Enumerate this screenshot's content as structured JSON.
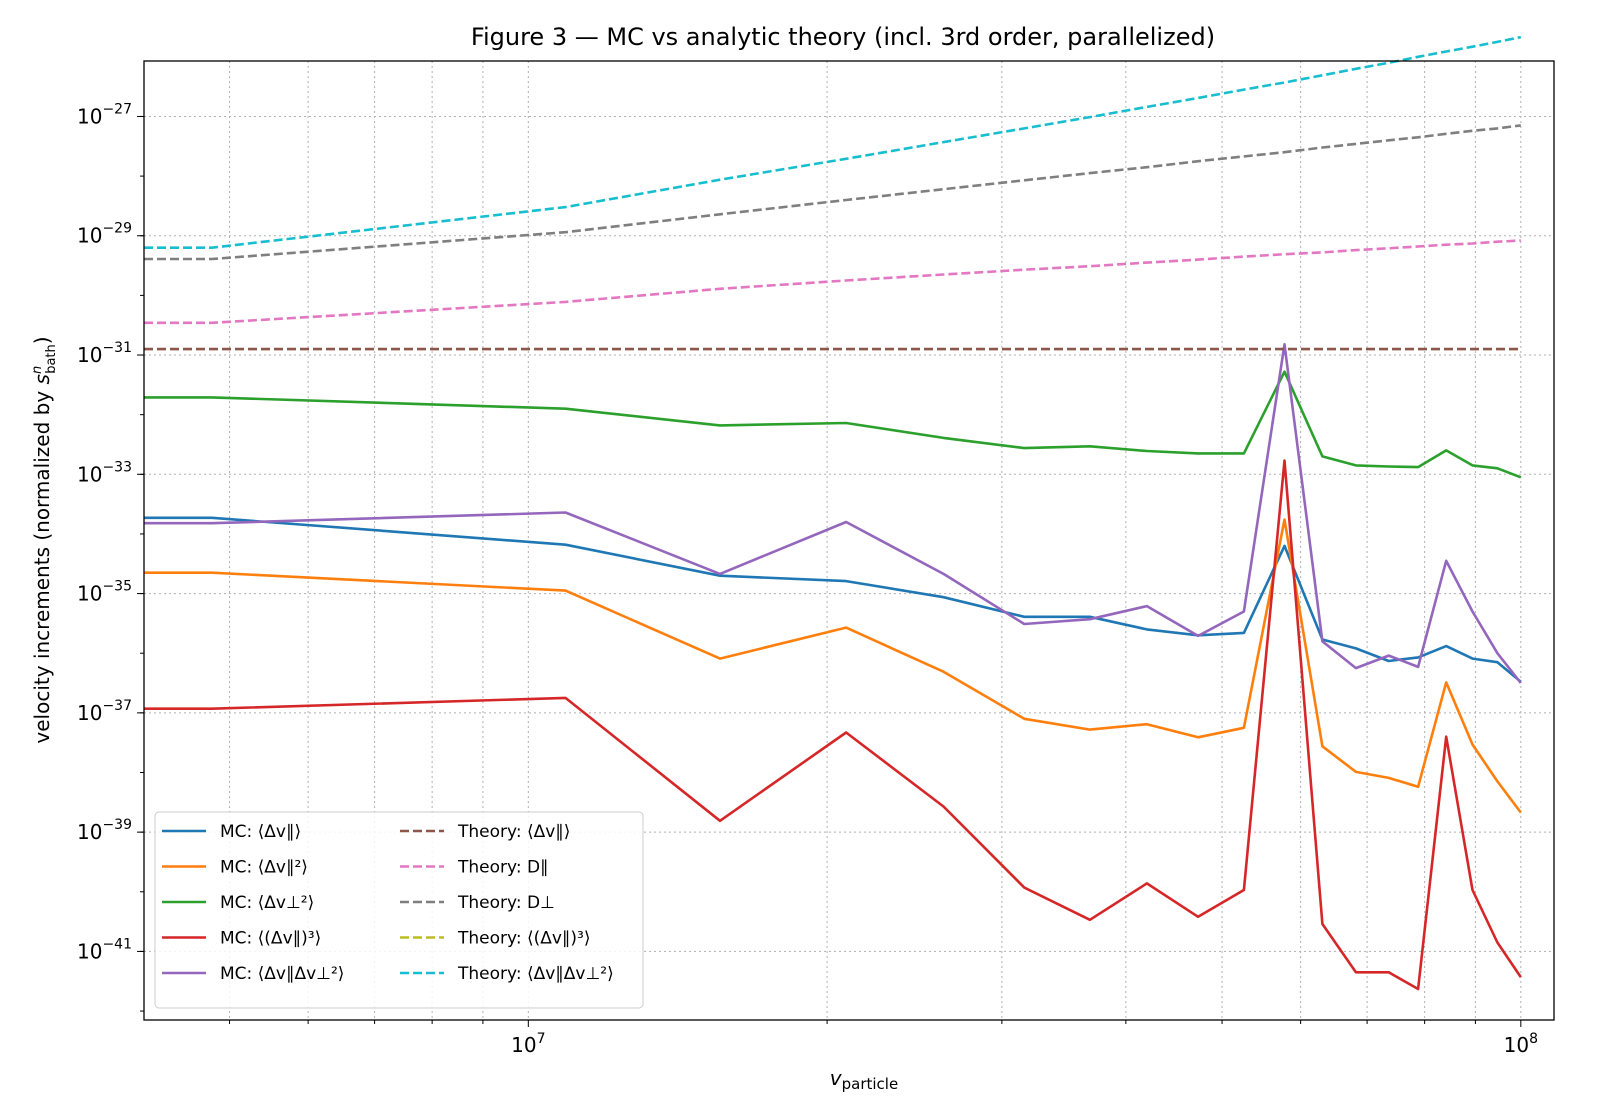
{
  "chart_data": {
    "type": "line",
    "title": "Figure 3 — MC vs analytic theory (incl. 3rd order, parallelized)",
    "xlabel": "v_particle",
    "ylabel": "velocity increments (normalized by s_bath^n)",
    "x_scale": "log",
    "y_scale": "log",
    "xlim": [
      4100000,
      108000000
    ],
    "ylim_exp": [
      -42.15,
      -26.07
    ],
    "x_ticks": [
      {
        "value": 10000000,
        "mantissa": "10",
        "exp": "7"
      },
      {
        "value": 100000000,
        "mantissa": "10",
        "exp": "8"
      }
    ],
    "y_ticks": [
      {
        "exp": -41,
        "label": "−41"
      },
      {
        "exp": -39,
        "label": "−39"
      },
      {
        "exp": -37,
        "label": "−37"
      },
      {
        "exp": -35,
        "label": "−35"
      },
      {
        "exp": -33,
        "label": "−33"
      },
      {
        "exp": -31,
        "label": "−31"
      },
      {
        "exp": -29,
        "label": "−29"
      },
      {
        "exp": -27,
        "label": "−27"
      }
    ],
    "grid": true,
    "legend_position": "lower-left",
    "x": [
      4100000,
      4800000,
      10900000,
      15600000,
      20900000,
      26200000,
      31600000,
      36800000,
      42000000,
      47300000,
      52600000,
      57800000,
      63100000,
      68200000,
      73600000,
      78800000,
      84100000,
      89400000,
      94700000,
      100000000
    ],
    "series": [
      {
        "name": "MC: ⟨Δv∥⟩",
        "color": "#1f77b4",
        "style": "solid",
        "log10_values": [
          -33.73,
          -33.73,
          -34.18,
          -34.7,
          -34.79,
          -35.06,
          -35.39,
          -35.39,
          -35.6,
          -35.7,
          -35.66,
          -34.2,
          -35.77,
          -35.92,
          -36.13,
          -36.07,
          -35.88,
          -36.09,
          -36.15,
          -36.48
        ]
      },
      {
        "name": "MC: ⟨Δv∥²⟩",
        "color": "#ff7f0e",
        "style": "solid",
        "log10_values": [
          -34.65,
          -34.65,
          -34.95,
          -36.09,
          -35.57,
          -36.31,
          -37.1,
          -37.28,
          -37.19,
          -37.41,
          -37.25,
          -33.76,
          -37.56,
          -37.99,
          -38.09,
          -38.24,
          -36.49,
          -37.53,
          -38.15,
          -38.67
        ]
      },
      {
        "name": "MC: ⟨Δv⊥²⟩",
        "color": "#2ca02c",
        "style": "solid",
        "log10_values": [
          -31.71,
          -31.71,
          -31.9,
          -32.18,
          -32.14,
          -32.39,
          -32.56,
          -32.53,
          -32.61,
          -32.65,
          -32.65,
          -31.28,
          -32.7,
          -32.85,
          -32.87,
          -32.88,
          -32.6,
          -32.85,
          -32.9,
          -33.05
        ]
      },
      {
        "name": "MC: ⟨(Δv∥)³⟩",
        "color": "#d62728",
        "style": "solid",
        "log10_values": [
          -36.93,
          -36.93,
          -36.75,
          -38.81,
          -37.33,
          -38.57,
          -39.93,
          -40.47,
          -39.86,
          -40.42,
          -39.97,
          -32.77,
          -40.54,
          -41.35,
          -41.35,
          -41.63,
          -37.4,
          -39.97,
          -40.85,
          -41.43
        ]
      },
      {
        "name": "MC: ⟨Δv∥Δv⊥²⟩",
        "color": "#9467bd",
        "style": "solid",
        "log10_values": [
          -33.82,
          -33.82,
          -33.64,
          -34.67,
          -33.8,
          -34.67,
          -35.51,
          -35.43,
          -35.21,
          -35.71,
          -35.3,
          -30.82,
          -35.8,
          -36.25,
          -36.04,
          -36.23,
          -34.45,
          -35.3,
          -36.0,
          -36.5
        ]
      },
      {
        "name": "Theory: ⟨Δv∥⟩",
        "color": "#8c564b",
        "style": "dashed",
        "log10_values": [
          -30.9,
          -30.9,
          -30.9,
          -30.9,
          -30.9,
          -30.9,
          -30.9,
          -30.9,
          -30.9,
          -30.9,
          -30.9,
          -30.9,
          -30.9,
          -30.9,
          -30.9,
          -30.9,
          -30.9,
          -30.9,
          -30.9,
          -30.9
        ]
      },
      {
        "name": "Theory: D∥",
        "color": "#e377c2",
        "style": "dashed",
        "log10_values": [
          -30.46,
          -30.46,
          -30.11,
          -29.89,
          -29.75,
          -29.65,
          -29.57,
          -29.51,
          -29.45,
          -29.4,
          -29.35,
          -29.31,
          -29.28,
          -29.24,
          -29.21,
          -29.18,
          -29.15,
          -29.13,
          -29.1,
          -29.08
        ]
      },
      {
        "name": "Theory: D⊥",
        "color": "#7f7f7f",
        "style": "dashed",
        "log10_values": [
          -29.39,
          -29.39,
          -28.94,
          -28.64,
          -28.4,
          -28.22,
          -28.07,
          -27.95,
          -27.85,
          -27.75,
          -27.67,
          -27.6,
          -27.52,
          -27.46,
          -27.4,
          -27.35,
          -27.29,
          -27.24,
          -27.2,
          -27.15
        ]
      },
      {
        "name": "Theory: ⟨(Δv∥)³⟩",
        "color": "#bcbd22",
        "style": "dashed",
        "log10_values": []
      },
      {
        "name": "Theory: ⟨Δv∥Δv⊥²⟩",
        "color": "#17becf",
        "style": "dashed",
        "log10_values": [
          -29.2,
          -29.2,
          -28.52,
          -28.06,
          -27.71,
          -27.43,
          -27.2,
          -27.01,
          -26.84,
          -26.69,
          -26.55,
          -26.43,
          -26.31,
          -26.2,
          -26.1,
          -26.0,
          -25.91,
          -25.83,
          -25.75,
          -25.67
        ]
      }
    ]
  }
}
